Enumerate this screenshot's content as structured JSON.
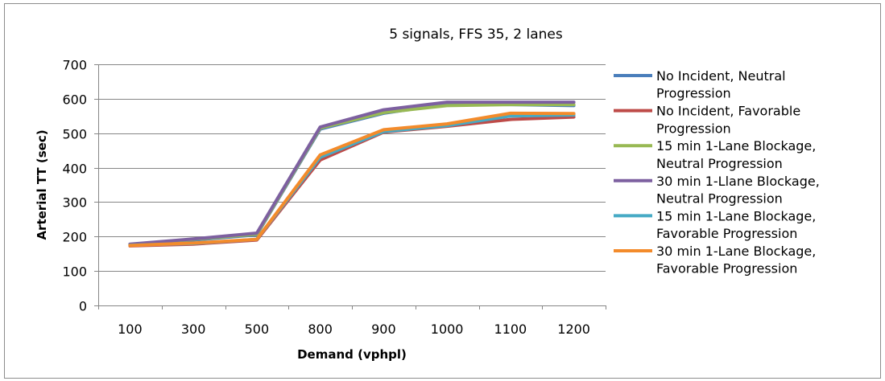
{
  "chart_data": {
    "type": "line",
    "title": "5 signals, FFS 35, 2 lanes",
    "xlabel": "Demand (vphpl)",
    "ylabel": "Arterial  TT (sec)",
    "categories": [
      "100",
      "300",
      "500",
      "800",
      "900",
      "1000",
      "1100",
      "1200"
    ],
    "ylim": [
      0,
      700
    ],
    "yticks": [
      0,
      100,
      200,
      300,
      400,
      500,
      600,
      700
    ],
    "grid": true,
    "legend_position": "right",
    "series": [
      {
        "name_lines": [
          "No Incident, Neutral",
          "Progression"
        ],
        "color": "#4a7ebb",
        "values": [
          177,
          190,
          205,
          512,
          558,
          585,
          583,
          580
        ]
      },
      {
        "name_lines": [
          "No Incident, Favorable",
          "Progression"
        ],
        "color": "#be4b48",
        "values": [
          173,
          178,
          190,
          422,
          503,
          520,
          540,
          547
        ]
      },
      {
        "name_lines": [
          "15 min 1-Lane Blockage,",
          "Neutral Progression"
        ],
        "color": "#98b954",
        "values": [
          177,
          192,
          207,
          515,
          560,
          580,
          583,
          583
        ]
      },
      {
        "name_lines": [
          "30 min 1-Llane Blockage,",
          "Neutral Progression"
        ],
        "color": "#7d60a0",
        "values": [
          178,
          193,
          210,
          518,
          568,
          590,
          590,
          590
        ]
      },
      {
        "name_lines": [
          "15 min 1-Lane Blockage,",
          "Favorable Progression"
        ],
        "color": "#46aac5",
        "values": [
          175,
          180,
          192,
          430,
          505,
          522,
          550,
          553
        ]
      },
      {
        "name_lines": [
          "30 min 1-Lane Blockage,",
          "Favorable Progression"
        ],
        "color": "#f38b2b",
        "values": [
          174,
          181,
          192,
          437,
          510,
          527,
          558,
          557
        ]
      }
    ]
  }
}
